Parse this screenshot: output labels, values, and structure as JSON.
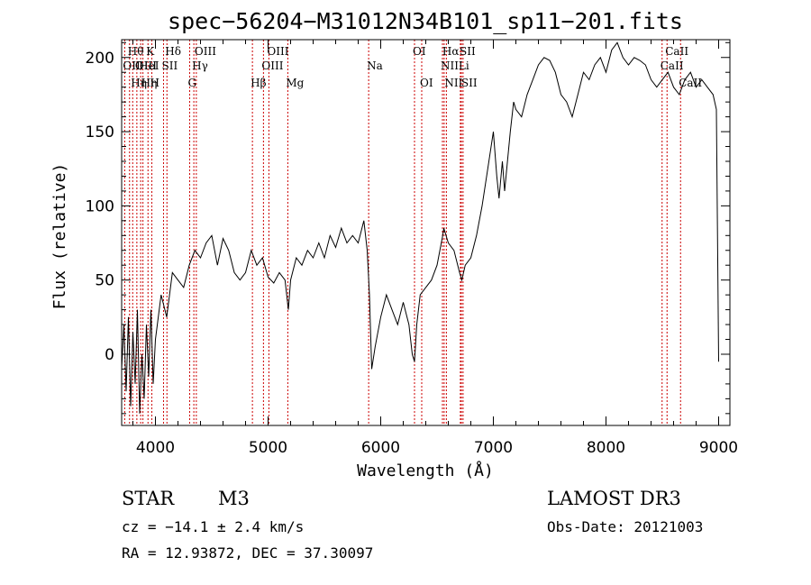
{
  "chart_data": {
    "type": "line",
    "title": "spec−56204−M31012N34B101_sp11−201.fits",
    "xlabel": "Wavelength (Å)",
    "ylabel": "Flux (relative)",
    "xlim": [
      3700,
      9100
    ],
    "ylim": [
      -48,
      212
    ],
    "x_ticks": [
      4000,
      5000,
      6000,
      7000,
      8000,
      9000
    ],
    "y_ticks": [
      0,
      50,
      100,
      150,
      200
    ],
    "grid": false,
    "line_color": "#000000",
    "marker_color": "#cc0000",
    "spectrum": {
      "x": [
        3700,
        3720,
        3740,
        3760,
        3780,
        3800,
        3820,
        3840,
        3860,
        3880,
        3900,
        3920,
        3940,
        3960,
        3980,
        4000,
        4050,
        4100,
        4150,
        4200,
        4250,
        4300,
        4350,
        4400,
        4450,
        4500,
        4550,
        4600,
        4650,
        4700,
        4750,
        4800,
        4850,
        4900,
        4950,
        5000,
        5050,
        5100,
        5150,
        5180,
        5200,
        5250,
        5300,
        5350,
        5400,
        5450,
        5500,
        5550,
        5600,
        5650,
        5700,
        5750,
        5800,
        5850,
        5880,
        5900,
        5920,
        5950,
        6000,
        6050,
        6100,
        6150,
        6200,
        6250,
        6280,
        6300,
        6320,
        6350,
        6400,
        6450,
        6500,
        6550,
        6560,
        6600,
        6650,
        6700,
        6720,
        6750,
        6800,
        6850,
        6900,
        6950,
        7000,
        7030,
        7050,
        7080,
        7100,
        7150,
        7180,
        7200,
        7250,
        7300,
        7350,
        7400,
        7450,
        7500,
        7550,
        7600,
        7650,
        7700,
        7750,
        7800,
        7850,
        7900,
        7950,
        8000,
        8050,
        8100,
        8150,
        8200,
        8250,
        8300,
        8350,
        8400,
        8450,
        8500,
        8550,
        8600,
        8650,
        8700,
        8750,
        8800,
        8850,
        8900,
        8950,
        8980,
        9000
      ],
      "y": [
        -10,
        20,
        -25,
        25,
        -35,
        15,
        -20,
        30,
        -40,
        0,
        -30,
        20,
        -15,
        30,
        -20,
        10,
        40,
        25,
        55,
        50,
        45,
        60,
        70,
        65,
        75,
        80,
        60,
        78,
        70,
        55,
        50,
        55,
        70,
        60,
        65,
        52,
        48,
        55,
        50,
        30,
        50,
        65,
        60,
        70,
        65,
        75,
        65,
        80,
        72,
        85,
        75,
        80,
        75,
        90,
        70,
        40,
        -10,
        5,
        25,
        40,
        30,
        20,
        35,
        20,
        0,
        -5,
        20,
        40,
        45,
        50,
        60,
        80,
        85,
        75,
        70,
        55,
        50,
        60,
        65,
        80,
        100,
        125,
        150,
        120,
        105,
        130,
        110,
        150,
        170,
        165,
        160,
        175,
        185,
        195,
        200,
        198,
        190,
        175,
        170,
        160,
        175,
        190,
        185,
        195,
        200,
        190,
        205,
        210,
        200,
        195,
        200,
        198,
        195,
        185,
        180,
        185,
        190,
        180,
        175,
        185,
        190,
        180,
        185,
        180,
        175,
        165,
        -5
      ]
    },
    "lines": [
      {
        "x": 3727,
        "label": "OII",
        "row": 2
      },
      {
        "x": 3770,
        "label": "Hθ",
        "row": 1
      },
      {
        "x": 3798,
        "label": "Hη",
        "row": 3
      },
      {
        "x": 3835,
        "label": "OIII",
        "row": 2
      },
      {
        "x": 3869,
        "label": "HeI",
        "row": 2
      },
      {
        "x": 3889,
        "label": "Hη",
        "row": 3
      },
      {
        "x": 3934,
        "label": "K",
        "row": 1
      },
      {
        "x": 3968,
        "label": "H",
        "row": 3
      },
      {
        "x": 4072,
        "label": "SII",
        "row": 2
      },
      {
        "x": 4102,
        "label": "Hδ",
        "row": 1
      },
      {
        "x": 4304,
        "label": "G",
        "row": 3
      },
      {
        "x": 4341,
        "label": "Hγ",
        "row": 2
      },
      {
        "x": 4363,
        "label": "OIII",
        "row": 1
      },
      {
        "x": 4861,
        "label": "Hβ",
        "row": 3
      },
      {
        "x": 4959,
        "label": "OIII",
        "row": 2
      },
      {
        "x": 5007,
        "label": "OIII",
        "row": 1
      },
      {
        "x": 5175,
        "label": "Mg",
        "row": 3
      },
      {
        "x": 5893,
        "label": "Na",
        "row": 2
      },
      {
        "x": 6300,
        "label": "OI",
        "row": 1
      },
      {
        "x": 6364,
        "label": "OI",
        "row": 3
      },
      {
        "x": 6548,
        "label": "NII",
        "row": 2
      },
      {
        "x": 6563,
        "label": "Hα",
        "row": 1
      },
      {
        "x": 6583,
        "label": "NII",
        "row": 3
      },
      {
        "x": 6707,
        "label": "Li",
        "row": 2
      },
      {
        "x": 6716,
        "label": "SII",
        "row": 1
      },
      {
        "x": 6731,
        "label": "SII",
        "row": 3
      },
      {
        "x": 8498,
        "label": "CaII",
        "row": 2
      },
      {
        "x": 8542,
        "label": "CaII",
        "row": 1
      },
      {
        "x": 8662,
        "label": "CaII",
        "row": 3
      }
    ]
  },
  "info": {
    "class": "STAR",
    "subclass": "M3",
    "cz": "cz = −14.1 ± 2.4 km/s",
    "coords": "RA =  12.93872, DEC =  37.30097",
    "survey": "LAMOST DR3",
    "obs_date": "Obs-Date: 20121003"
  }
}
